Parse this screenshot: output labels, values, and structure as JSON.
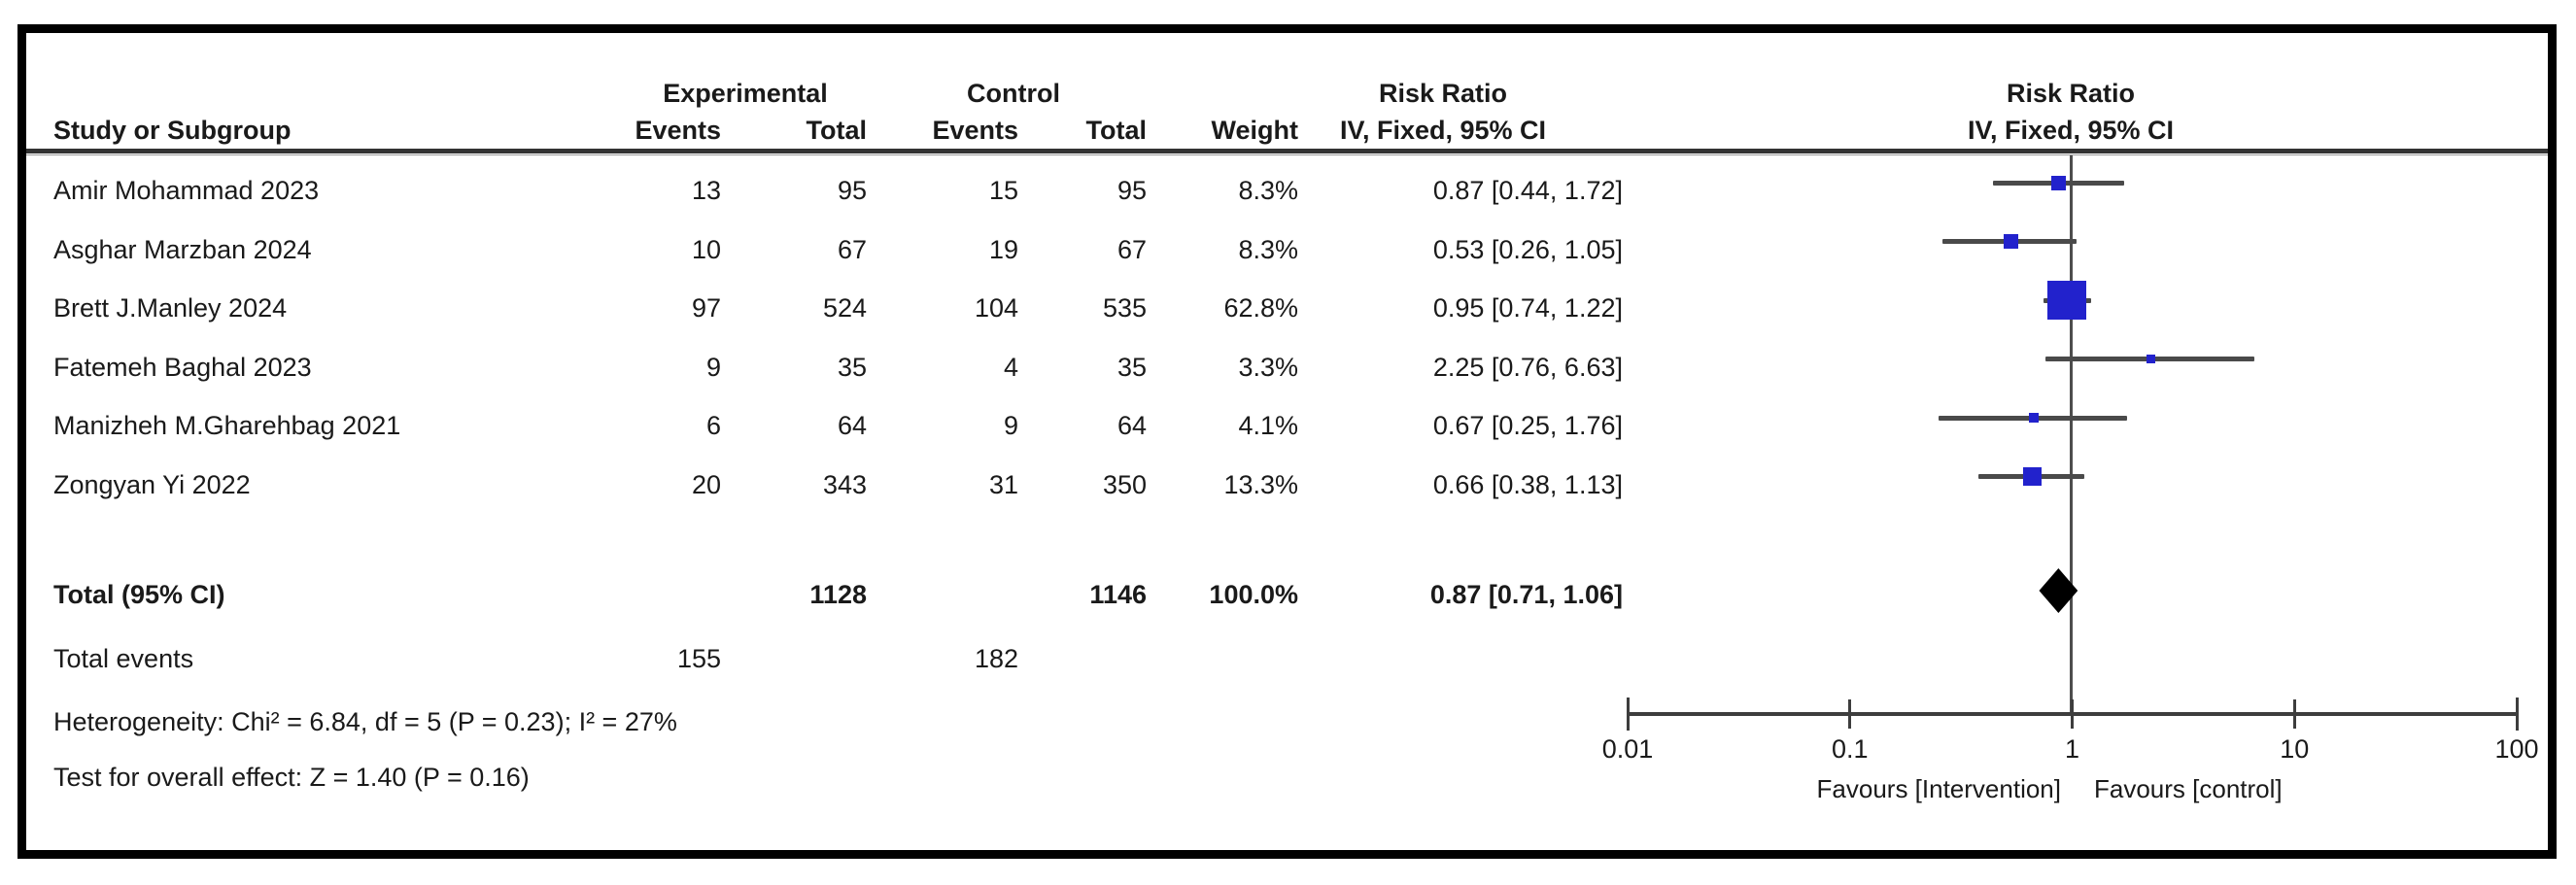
{
  "table": {
    "group_headers": {
      "experimental": "Experimental",
      "control": "Control"
    },
    "headers": {
      "study": "Study or Subgroup",
      "events": "Events",
      "total": "Total",
      "weight": "Weight",
      "risk_ratio": "Risk Ratio",
      "method": "IV, Fixed, 95% CI"
    }
  },
  "totals": {
    "label": "Total (95% CI)",
    "exp_total": "1128",
    "ctl_total": "1146",
    "weight": "100.0%",
    "ci_label": "0.87 [0.71, 1.06]"
  },
  "total_events": {
    "label": "Total events",
    "experimental": "155",
    "control": "182"
  },
  "stats": {
    "heterogeneity": "Heterogeneity: Chi² = 6.84, df = 5 (P = 0.23); I² = 27%",
    "overall_effect": "Test for overall effect: Z = 1.40 (P = 0.16)"
  },
  "colors": {
    "square": "#2222cc",
    "diamond": "#000000",
    "ci_line": "#4a4a4a",
    "axis": "#3d3d3d"
  },
  "chart_data": {
    "type": "forest",
    "effect_measure": "Risk Ratio",
    "model": "IV, Fixed, 95% CI",
    "x_axis": {
      "scale": "log",
      "range": [
        0.01,
        100
      ],
      "ticks": [
        0.01,
        0.1,
        1,
        10,
        100
      ],
      "tick_labels": [
        "0.01",
        "0.1",
        "1",
        "10",
        "100"
      ],
      "favours_left": "Favours [Intervention]",
      "favours_right": "Favours [control]"
    },
    "studies": [
      {
        "name": "Amir Mohammad 2023",
        "exp_events": 13,
        "exp_total": 95,
        "ctl_events": 15,
        "ctl_total": 95,
        "weight_label": "8.3%",
        "weight": 8.3,
        "rr": 0.87,
        "ci_low": 0.44,
        "ci_high": 1.72,
        "ci_label": "0.87 [0.44, 1.72]"
      },
      {
        "name": "Asghar Marzban 2024",
        "exp_events": 10,
        "exp_total": 67,
        "ctl_events": 19,
        "ctl_total": 67,
        "weight_label": "8.3%",
        "weight": 8.3,
        "rr": 0.53,
        "ci_low": 0.26,
        "ci_high": 1.05,
        "ci_label": "0.53 [0.26, 1.05]"
      },
      {
        "name": "Brett J.Manley 2024",
        "exp_events": 97,
        "exp_total": 524,
        "ctl_events": 104,
        "ctl_total": 535,
        "weight_label": "62.8%",
        "weight": 62.8,
        "rr": 0.95,
        "ci_low": 0.74,
        "ci_high": 1.22,
        "ci_label": "0.95 [0.74, 1.22]"
      },
      {
        "name": "Fatemeh Baghal 2023",
        "exp_events": 9,
        "exp_total": 35,
        "ctl_events": 4,
        "ctl_total": 35,
        "weight_label": "3.3%",
        "weight": 3.3,
        "rr": 2.25,
        "ci_low": 0.76,
        "ci_high": 6.63,
        "ci_label": "2.25 [0.76, 6.63]"
      },
      {
        "name": "Manizheh M.Gharehbag 2021",
        "exp_events": 6,
        "exp_total": 64,
        "ctl_events": 9,
        "ctl_total": 64,
        "weight_label": "4.1%",
        "weight": 4.1,
        "rr": 0.67,
        "ci_low": 0.25,
        "ci_high": 1.76,
        "ci_label": "0.67 [0.25, 1.76]"
      },
      {
        "name": "Zongyan Yi 2022",
        "exp_events": 20,
        "exp_total": 343,
        "ctl_events": 31,
        "ctl_total": 350,
        "weight_label": "13.3%",
        "weight": 13.3,
        "rr": 0.66,
        "ci_low": 0.38,
        "ci_high": 1.13,
        "ci_label": "0.66 [0.38, 1.13]"
      }
    ],
    "total": {
      "rr": 0.87,
      "ci_low": 0.71,
      "ci_high": 1.06
    }
  }
}
